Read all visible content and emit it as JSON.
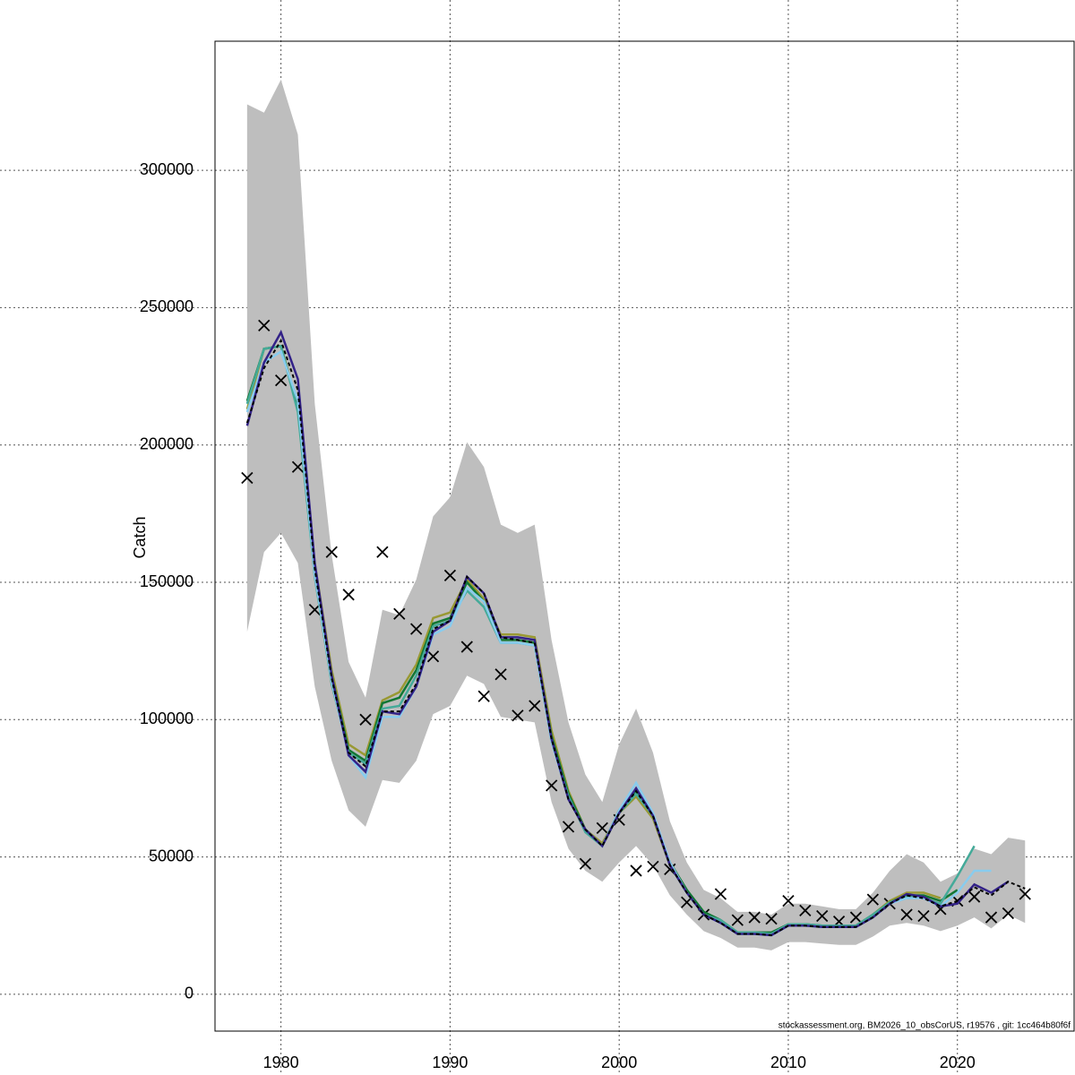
{
  "chart_data": {
    "type": "line",
    "ylabel": "Catch",
    "footnote": "stockassessment.org, BM2026_10_obsCorUS, r19576 , git: 1cc464b80f6f",
    "x": [
      1978,
      1979,
      1980,
      1981,
      1982,
      1983,
      1984,
      1985,
      1986,
      1987,
      1988,
      1989,
      1990,
      1991,
      1992,
      1993,
      1994,
      1995,
      1996,
      1997,
      1998,
      1999,
      2000,
      2001,
      2002,
      2003,
      2004,
      2005,
      2006,
      2007,
      2008,
      2009,
      2010,
      2011,
      2012,
      2013,
      2014,
      2015,
      2016,
      2017,
      2018,
      2019,
      2020,
      2021,
      2022,
      2023,
      2024
    ],
    "xlim": [
      1976.1,
      2026.9
    ],
    "xticks": [
      1980,
      1990,
      2000,
      2010,
      2020
    ],
    "ylim": [
      -13400,
      347000
    ],
    "yticks": [
      0,
      50000,
      100000,
      150000,
      200000,
      250000,
      300000
    ],
    "grid": true,
    "band": {
      "color": "#bebebe",
      "upper": [
        324000,
        321000,
        333000,
        313000,
        215000,
        160000,
        121000,
        108000,
        140000,
        138000,
        151000,
        174000,
        181000,
        201000,
        192000,
        171000,
        168000,
        171000,
        129000,
        99000,
        80000,
        70000,
        91000,
        104000,
        88000,
        63000,
        48000,
        38000,
        35000,
        30000,
        30000,
        29000,
        33000,
        33000,
        32000,
        31000,
        31000,
        37000,
        45000,
        51000,
        48000,
        41000,
        44000,
        53000,
        51000,
        57000,
        56000
      ],
      "lower": [
        132000,
        161000,
        168000,
        157000,
        112000,
        85000,
        67000,
        61000,
        78000,
        77000,
        85000,
        102000,
        105000,
        116000,
        113000,
        101000,
        100000,
        99000,
        70000,
        53000,
        45000,
        41000,
        48000,
        54000,
        47000,
        36000,
        29000,
        23000,
        20500,
        17000,
        17000,
        16000,
        19000,
        19000,
        18500,
        18000,
        18000,
        21000,
        25000,
        26000,
        25000,
        23000,
        25000,
        28000,
        24000,
        29000,
        26000
      ]
    },
    "observations": {
      "color": "#000000",
      "marker": "x",
      "values": [
        188000,
        243500,
        223500,
        192000,
        140000,
        161000,
        145500,
        100000,
        161000,
        138500,
        133000,
        123000,
        152500,
        126500,
        108500,
        116500,
        101500,
        105000,
        76000,
        61000,
        47500,
        60500,
        63500,
        45000,
        46500,
        45500,
        33500,
        29000,
        36500,
        27000,
        28000,
        27500,
        34000,
        30500,
        28500,
        26500,
        28000,
        34500,
        33000,
        29000,
        28500,
        31000,
        34000,
        35500,
        28000,
        29500,
        36500
      ]
    },
    "series": [
      {
        "color": "#999933",
        "values": [
          213000,
          235000,
          236000,
          214000,
          157000,
          118000,
          91000,
          87000,
          107000,
          110000,
          120000,
          137000,
          139000,
          151000,
          144000,
          131000,
          131000,
          130000,
          96000,
          74000,
          60000,
          55000,
          66000,
          72000,
          64000,
          47000,
          37000,
          29000,
          26500,
          22000,
          22000,
          22000,
          25000,
          25000,
          24500,
          24500,
          25000,
          29000,
          34000,
          37000,
          37000,
          35000,
          null,
          null,
          null,
          null,
          null
        ]
      },
      {
        "color": "#117733",
        "values": [
          216000,
          235000,
          236000,
          213000,
          154000,
          116000,
          89000,
          85000,
          106000,
          108000,
          118000,
          135000,
          137000,
          150000,
          143000,
          129000,
          129000,
          128000,
          94000,
          73000,
          60000,
          54000,
          67000,
          74000,
          65000,
          48000,
          38000,
          30000,
          27000,
          22500,
          22500,
          22500,
          25500,
          25500,
          25000,
          25000,
          25000,
          29000,
          33500,
          36000,
          36000,
          34000,
          38000,
          null,
          null,
          null,
          null
        ]
      },
      {
        "color": "#44aa99",
        "values": [
          215000,
          235000,
          236000,
          212000,
          152000,
          113000,
          88000,
          84000,
          104000,
          105000,
          116000,
          134000,
          136000,
          147000,
          141000,
          128000,
          128000,
          127000,
          92000,
          72000,
          59000,
          54000,
          66000,
          73000,
          65000,
          47000,
          37000,
          29000,
          27000,
          22500,
          22500,
          22000,
          25500,
          25500,
          25000,
          25000,
          25000,
          29000,
          33500,
          35500,
          35000,
          33000,
          43000,
          54000,
          null,
          null,
          null
        ]
      },
      {
        "color": "#88ccee",
        "values": [
          212000,
          230000,
          234000,
          216000,
          153000,
          114000,
          87000,
          79000,
          101000,
          101000,
          112000,
          131000,
          134000,
          148000,
          143000,
          128000,
          128000,
          127000,
          92000,
          71000,
          60000,
          54000,
          67000,
          77000,
          66000,
          48000,
          37000,
          29000,
          26000,
          22000,
          22000,
          21500,
          25000,
          25000,
          24500,
          24500,
          24500,
          28000,
          33000,
          35000,
          35000,
          32000,
          37000,
          45000,
          45000,
          null,
          null
        ]
      },
      {
        "color": "#332288",
        "values": [
          207000,
          230000,
          241000,
          224000,
          157000,
          116000,
          87000,
          81000,
          103000,
          102000,
          112000,
          132000,
          136000,
          152000,
          146000,
          130000,
          130000,
          129000,
          93000,
          71000,
          60000,
          54000,
          66000,
          75000,
          65000,
          47000,
          37000,
          29000,
          26000,
          22000,
          22000,
          21500,
          25000,
          25000,
          24500,
          24500,
          24500,
          28000,
          33000,
          36500,
          35500,
          32000,
          33000,
          40000,
          37000,
          41000,
          null
        ]
      },
      {
        "color": "#000000",
        "dash": true,
        "values": [
          208000,
          228000,
          238000,
          220000,
          155000,
          115000,
          88000,
          83000,
          103000,
          103000,
          113000,
          133000,
          136000,
          152000,
          146000,
          130000,
          129000,
          128000,
          93000,
          71000,
          60000,
          54000,
          66000,
          74000,
          65000,
          47000,
          37000,
          29000,
          26000,
          22000,
          22000,
          21500,
          25000,
          25000,
          24500,
          24500,
          24500,
          28000,
          33000,
          36000,
          35000,
          32000,
          34000,
          39000,
          36000,
          41000,
          38500
        ]
      }
    ]
  }
}
